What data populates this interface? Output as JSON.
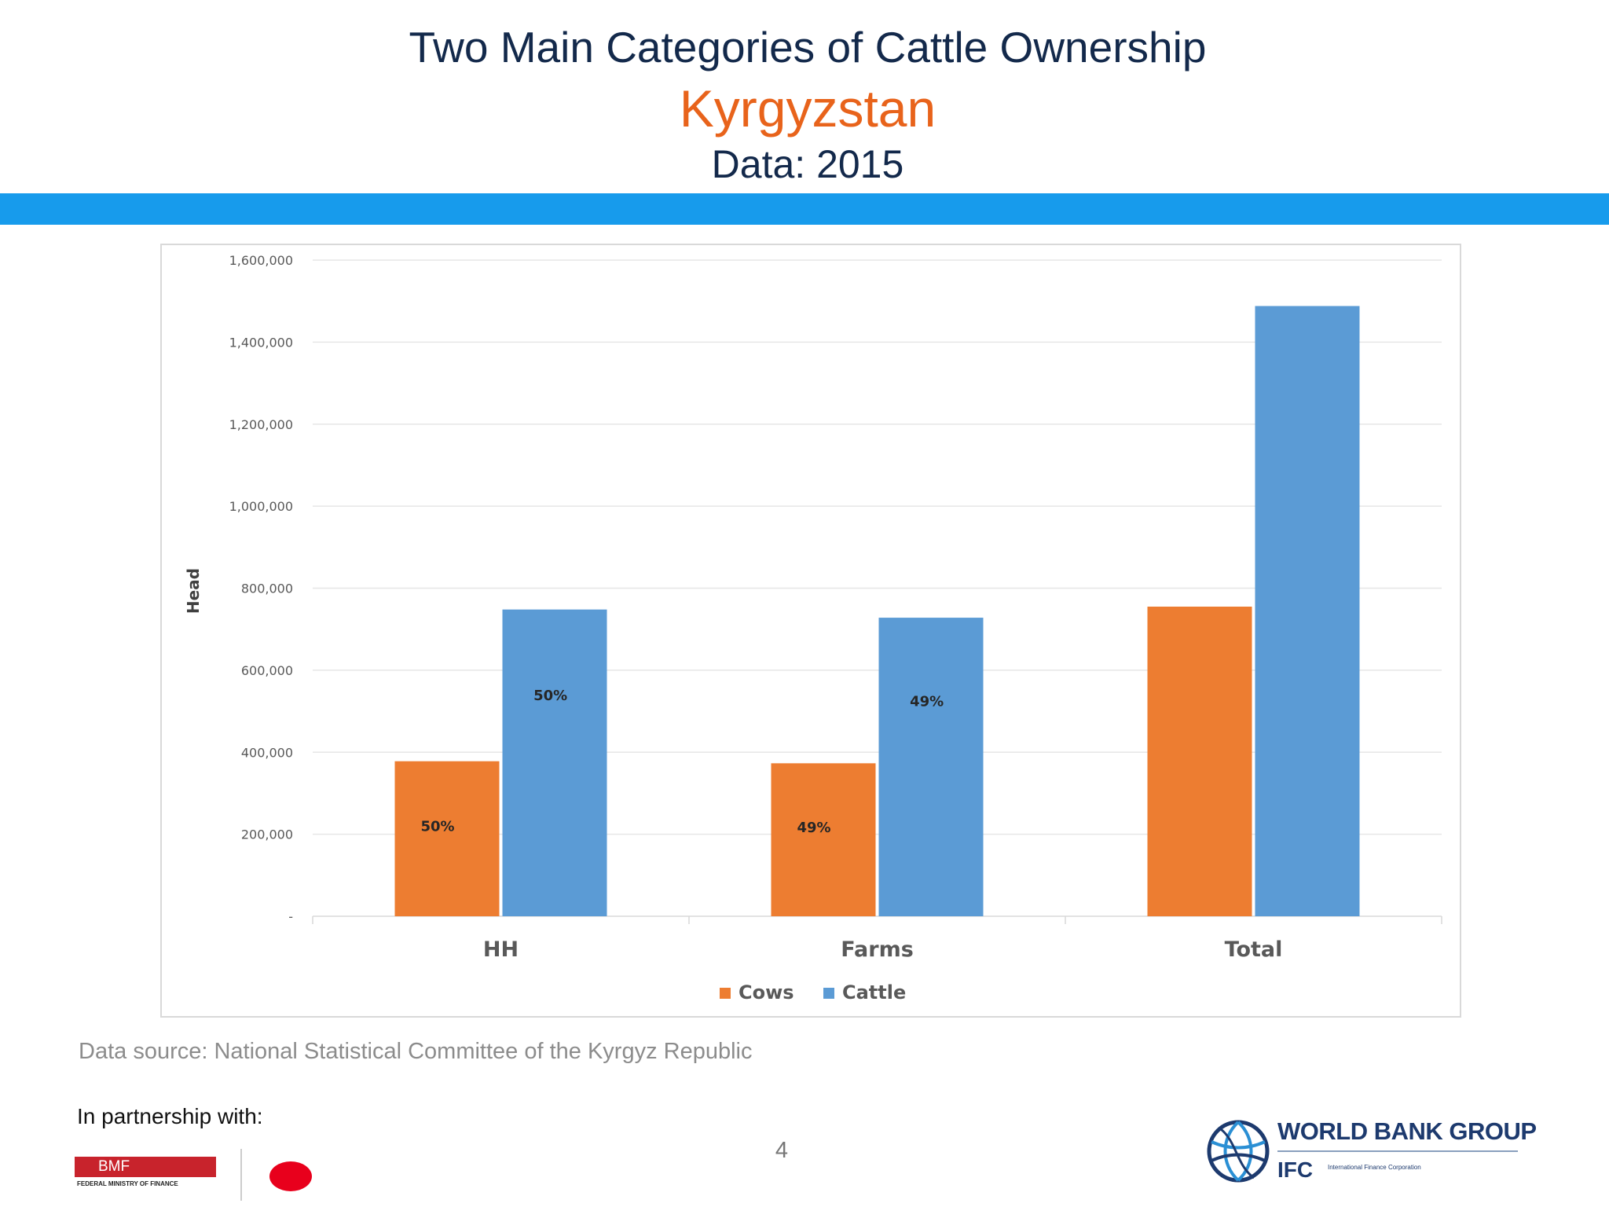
{
  "header": {
    "title": "Two Main Categories of Cattle Ownership",
    "country": "Kyrgyzstan",
    "data_year": "Data: 2015"
  },
  "chart_data": {
    "type": "bar",
    "title": "",
    "categories": [
      "HH",
      "Farms",
      "Total"
    ],
    "series": [
      {
        "name": "Cows",
        "color": "#ed7d31",
        "values": [
          378000,
          373000,
          755000
        ],
        "data_labels": [
          "50%",
          "49%",
          ""
        ]
      },
      {
        "name": "Cattle",
        "color": "#5b9bd5",
        "values": [
          748000,
          728000,
          1488000
        ],
        "data_labels": [
          "50%",
          "49%",
          ""
        ]
      }
    ],
    "xlabel": "",
    "ylabel": "Head",
    "ylim": [
      0,
      1600000
    ],
    "yticks": [
      0,
      200000,
      400000,
      600000,
      800000,
      1000000,
      1200000,
      1400000,
      1600000
    ],
    "ytick_labels": [
      "-",
      "200,000",
      "400,000",
      "600,000",
      "800,000",
      "1,000,000",
      "1,200,000",
      "1,400,000",
      "1,600,000"
    ],
    "grid": true,
    "legend_position": "bottom"
  },
  "footer": {
    "source": "Data source: National Statistical Committee of the Kyrgyz Republic",
    "partnership": "In partnership with:",
    "page_number": "4",
    "bmf_logo": "BMF",
    "bmf_caption": "FEDERAL MINISTRY OF FINANCE",
    "wb_name": "WORLD BANK GROUP",
    "ifc_name": "IFC",
    "ifc_caption": "International Finance Corporation"
  },
  "colors": {
    "title": "#13294b",
    "accent_orange": "#e8631b",
    "rule_blue": "#179bec"
  }
}
